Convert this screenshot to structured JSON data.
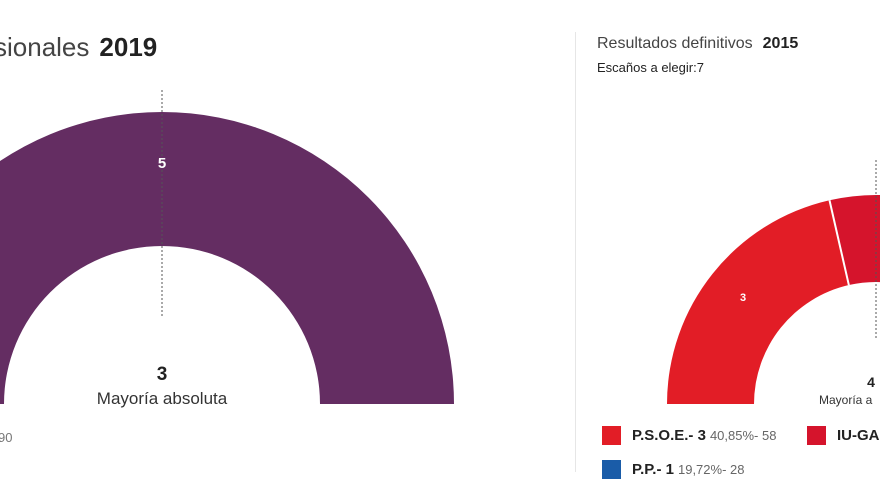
{
  "left": {
    "title": "sionales",
    "year": "2019",
    "majority_value": "3",
    "majority_label": "Mayoría absoluta",
    "footnote": "90",
    "color": "#642d62"
  },
  "right": {
    "title": "Resultados definitivos",
    "year": "2015",
    "seats_label": "Escaños a elegir:7",
    "majority_value": "4",
    "majority_label": "Mayoría a",
    "legend": [
      {
        "name": "P.S.O.E.- 3",
        "detail": "40,85%- 58",
        "color": "#e21d26"
      },
      {
        "name": "IU-GA",
        "detail": "",
        "color": "#d5142c"
      },
      {
        "name": "P.P.- 1",
        "detail": "19,72%- 28",
        "color": "#1a5ca8"
      }
    ]
  },
  "chart_data": [
    {
      "type": "pie",
      "title": "sionales 2019",
      "series": [
        {
          "seats": 5,
          "color": "#642d62"
        }
      ],
      "majority": 3,
      "note": "semicircle seat chart"
    },
    {
      "type": "pie",
      "title": "Resultados definitivos 2015",
      "subtitle": "Escaños a elegir:7",
      "series": [
        {
          "name": "P.S.O.E.",
          "seats": 3,
          "percent": 40.85,
          "votes": 58,
          "color": "#e21d26"
        },
        {
          "name": "IU-GA",
          "color": "#d5142c"
        },
        {
          "name": "P.P.",
          "seats": 1,
          "percent": 19.72,
          "votes": 28,
          "color": "#1a5ca8"
        }
      ],
      "majority": 4,
      "total_seats": 7,
      "note": "semicircle seat chart"
    }
  ]
}
